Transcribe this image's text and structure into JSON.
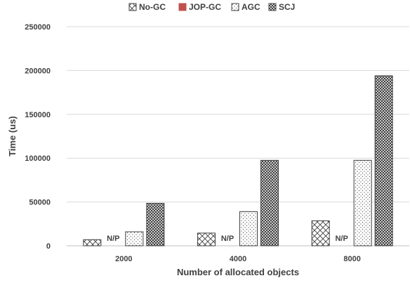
{
  "chart_data": {
    "type": "bar",
    "title": "",
    "xlabel": "Number of allocated objects",
    "ylabel": "Time (us)",
    "ylim": [
      0,
      250000
    ],
    "yticks": [
      0,
      50000,
      100000,
      150000,
      200000,
      250000
    ],
    "grid": true,
    "legend_position": "top",
    "categories": [
      "2000",
      "4000",
      "8000"
    ],
    "series": [
      {
        "name": "No-GC",
        "pattern": "diagonal-cross",
        "values": [
          7000,
          14500,
          28500
        ]
      },
      {
        "name": "JOP-GC",
        "color": "#c0504d",
        "values": [
          null,
          null,
          null
        ],
        "missing_label": "N/P"
      },
      {
        "name": "AGC",
        "pattern": "dots",
        "values": [
          16000,
          39000,
          97500
        ]
      },
      {
        "name": "SCJ",
        "pattern": "dense-crosshatch",
        "values": [
          48500,
          97500,
          194000
        ]
      }
    ]
  }
}
